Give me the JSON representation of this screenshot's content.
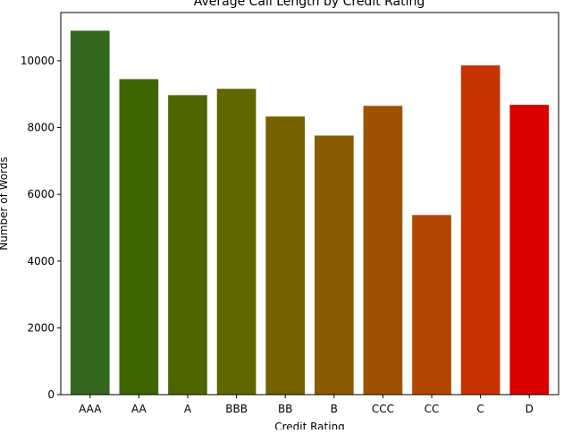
{
  "chart_data": {
    "type": "bar",
    "title": "Average Call Length by Credit Rating",
    "xlabel": "Credit Rating",
    "ylabel": "Number of Words",
    "categories": [
      "AAA",
      "AA",
      "A",
      "BBB",
      "BB",
      "B",
      "CCC",
      "CC",
      "C",
      "D"
    ],
    "values": [
      10900,
      9450,
      8970,
      9160,
      8330,
      7760,
      8650,
      5380,
      9860,
      8680
    ],
    "colors": [
      "#33661e",
      "#3d6600",
      "#4d6600",
      "#616600",
      "#756100",
      "#8a5c00",
      "#9e5200",
      "#b34700",
      "#c73300",
      "#db0000"
    ],
    "ylim": [
      0,
      11445
    ],
    "yticks": [
      0,
      2000,
      4000,
      6000,
      8000,
      10000
    ],
    "ytick_labels": [
      "0",
      "2000",
      "4000",
      "6000",
      "8000",
      "10000"
    ],
    "grid": false,
    "legend": "none"
  }
}
